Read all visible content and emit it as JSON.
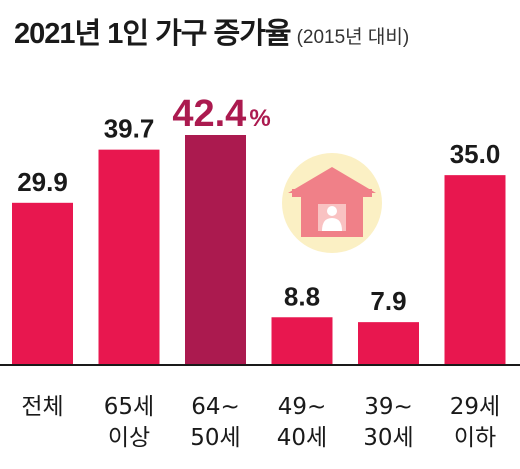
{
  "title": "2021년 1인 가구 증가율",
  "subtitle": "(2015년 대비)",
  "colors": {
    "bar": "#e8174f",
    "highlight_bar": "#ab1a4f",
    "highlight_text": "#ab1a4f",
    "text": "#1a1a1a",
    "baseline": "#1a1a1a",
    "icon_circle": "#fbf0c4",
    "icon_house": "#f08088",
    "icon_house_light": "#f9c2c2"
  },
  "icon": "house-with-person-icon",
  "chart_data": {
    "type": "bar",
    "title": "2021년 1인 가구 증가율",
    "subtitle": "(2015년 대비)",
    "categories": [
      [
        "전체"
      ],
      [
        "65세",
        "이상"
      ],
      [
        "64~",
        "50세"
      ],
      [
        "49~",
        "40세"
      ],
      [
        "39~",
        "30세"
      ],
      [
        "29세",
        "이하"
      ]
    ],
    "values": [
      29.9,
      39.7,
      42.4,
      8.8,
      7.9,
      35.0
    ],
    "value_labels": [
      "29.9",
      "39.7",
      "42.4",
      "8.8",
      "7.9",
      "35.0"
    ],
    "highlight_index": 2,
    "highlight_unit": "%",
    "ylim": [
      0,
      42.4
    ],
    "grid": false,
    "legend": "none"
  }
}
